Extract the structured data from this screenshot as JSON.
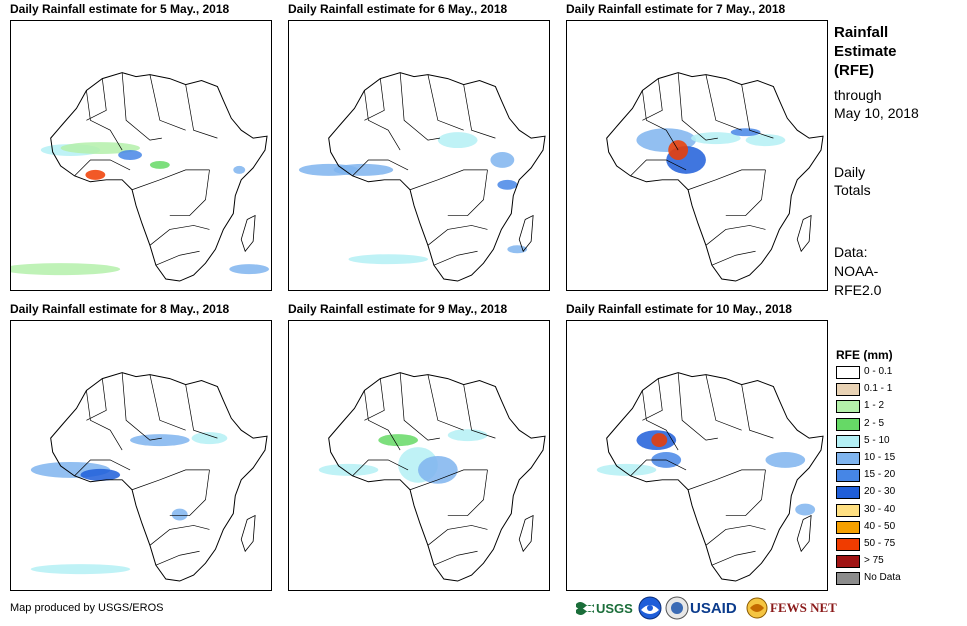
{
  "panels": [
    {
      "title": "Daily Rainfall estimate for 5 May., 2018"
    },
    {
      "title": "Daily Rainfall estimate for 6 May., 2018"
    },
    {
      "title": "Daily Rainfall estimate for 7 May., 2018"
    },
    {
      "title": "Daily Rainfall estimate for 8 May., 2018"
    },
    {
      "title": "Daily Rainfall estimate for 9 May., 2018"
    },
    {
      "title": "Daily Rainfall estimate for 10 May., 2018"
    }
  ],
  "side": {
    "l1": "Rainfall",
    "l2": "Estimate",
    "l3": "(RFE)",
    "l4": "through",
    "l5": "May 10, 2018",
    "l6": "Daily",
    "l7": "Totals",
    "l8": "Data:",
    "l9": "NOAA-",
    "l10": "RFE2.0"
  },
  "legend": {
    "title": "RFE (mm)",
    "items": [
      {
        "label": "0 - 0.1",
        "color": "#ffffff"
      },
      {
        "label": "0.1 - 1",
        "color": "#e8d2b4"
      },
      {
        "label": "1 - 2",
        "color": "#b4f0aa"
      },
      {
        "label": "2 - 5",
        "color": "#66d966"
      },
      {
        "label": "5 - 10",
        "color": "#b4f0f5"
      },
      {
        "label": "10 - 15",
        "color": "#7fb4ee"
      },
      {
        "label": "15 - 20",
        "color": "#4686e6"
      },
      {
        "label": "20 - 30",
        "color": "#1f5ed9"
      },
      {
        "label": "30 - 40",
        "color": "#ffe082"
      },
      {
        "label": "40 - 50",
        "color": "#f5a000"
      },
      {
        "label": "50 - 75",
        "color": "#f03c00"
      },
      {
        "label": "> 75",
        "color": "#a01414"
      },
      {
        "label": "No Data",
        "color": "#8c8c8c"
      }
    ]
  },
  "credit": "Map produced by USGS/EROS",
  "logos": {
    "usgs": "USGS",
    "usaid": "USAID",
    "fews": "FEWS NET"
  }
}
